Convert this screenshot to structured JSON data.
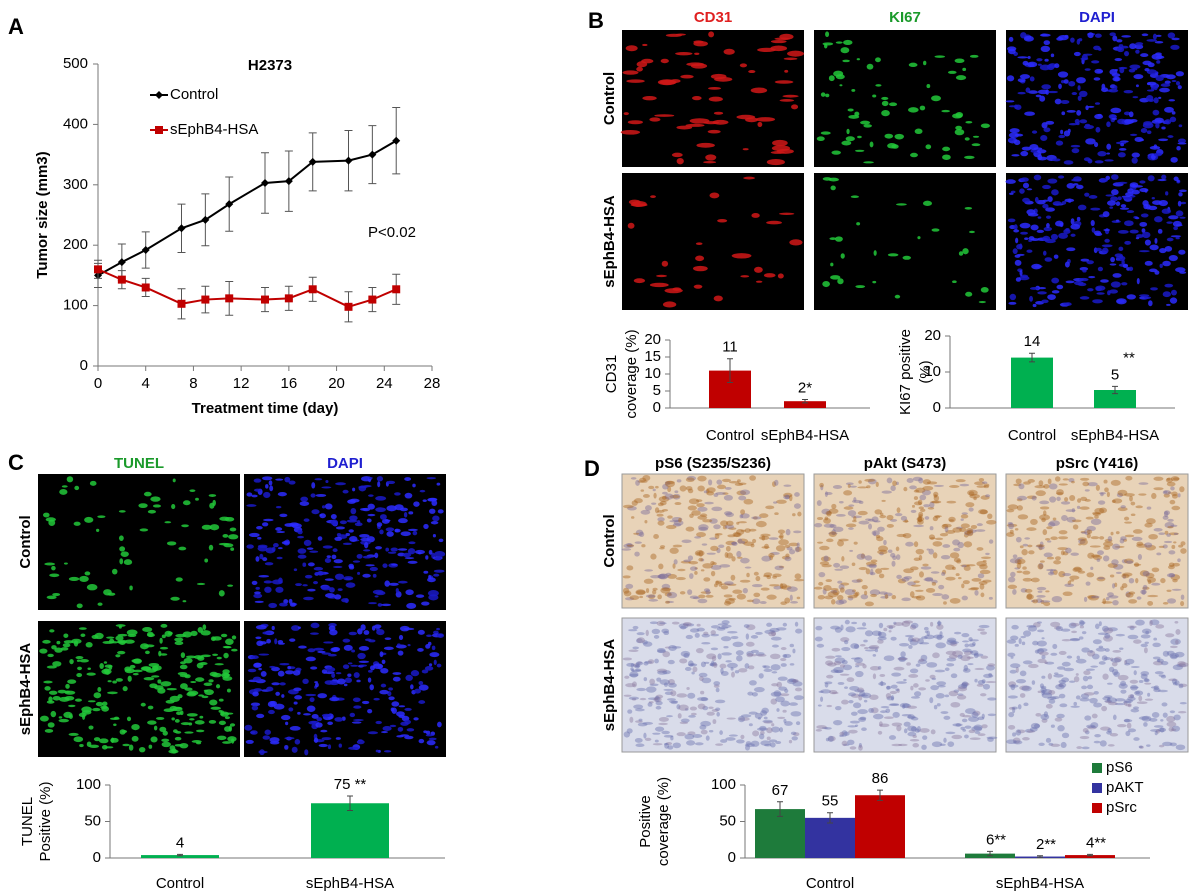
{
  "panel_letters": [
    "A",
    "B",
    "C",
    "D"
  ],
  "image_panels": [
    {
      "columns": [
        "CD31",
        "KI67",
        "DAPI"
      ],
      "rows": [
        "Control",
        "sEphB4-HSA"
      ]
    },
    {
      "columns": [
        "TUNEL",
        "DAPI"
      ],
      "rows": [
        "Control",
        "sEphB4-HSA"
      ]
    },
    {
      "columns": [
        "pS6 (S235/S236)",
        "pAkt (S473)",
        "pSrc (Y416)"
      ],
      "rows": [
        "Control",
        "sEphB4-HSA"
      ]
    }
  ],
  "chart_data": [
    {
      "type": "line",
      "title": "H2373",
      "xlabel": "Treatment time (day)",
      "ylabel": "Tumor size (mm3)",
      "x": [
        0,
        2,
        4,
        7,
        9,
        11,
        14,
        16,
        18,
        21,
        23,
        25
      ],
      "series": [
        {
          "name": "Control",
          "color": "#000000",
          "marker": "diamond",
          "values": [
            150,
            172,
            192,
            228,
            242,
            268,
            303,
            306,
            338,
            340,
            350,
            373
          ],
          "errors": [
            20,
            30,
            30,
            40,
            43,
            45,
            50,
            50,
            48,
            50,
            48,
            55
          ]
        },
        {
          "name": "sEphB4-HSA",
          "color": "#c00000",
          "marker": "square",
          "values": [
            160,
            143,
            130,
            103,
            110,
            112,
            110,
            112,
            127,
            98,
            110,
            127
          ],
          "errors": [
            15,
            15,
            15,
            25,
            22,
            28,
            20,
            20,
            20,
            25,
            20,
            25
          ]
        }
      ],
      "annotations": [
        "P<0.02"
      ],
      "xlim": [
        0,
        28
      ],
      "xticks": [
        0,
        4,
        8,
        12,
        16,
        20,
        24,
        28
      ],
      "ylim": [
        0,
        500
      ],
      "yticks": [
        0,
        100,
        200,
        300,
        400,
        500
      ]
    },
    {
      "type": "bar",
      "ylabel": [
        "CD31",
        "coverage  (%)"
      ],
      "categories": [
        "Control",
        "sEphB4-HSA"
      ],
      "values": [
        11,
        2
      ],
      "value_labels": [
        "11",
        "2*"
      ],
      "errors": [
        3.5,
        0.5
      ],
      "color": "#c00000",
      "ylim": [
        0,
        20
      ],
      "yticks": [
        0,
        5,
        10,
        15,
        20
      ]
    },
    {
      "type": "bar",
      "ylabel": [
        "KI67 positive",
        "(%)"
      ],
      "categories": [
        "Control",
        "sEphB4-HSA"
      ],
      "values": [
        14,
        5
      ],
      "value_labels": [
        "14",
        "5"
      ],
      "errors": [
        1.2,
        1
      ],
      "color": "#00b050",
      "annotations": [
        "**"
      ],
      "ylim": [
        0,
        20
      ],
      "yticks": [
        0,
        10,
        20
      ]
    },
    {
      "type": "bar",
      "ylabel": [
        "TUNEL",
        "Positive (%)"
      ],
      "categories": [
        "Control",
        "sEphB4-HSA"
      ],
      "values": [
        4,
        75
      ],
      "value_labels": [
        "4",
        "75 **"
      ],
      "errors": [
        1,
        10
      ],
      "color": "#00b050",
      "ylim": [
        0,
        100
      ],
      "yticks": [
        0,
        50,
        100
      ]
    },
    {
      "type": "bar",
      "ylabel": [
        "Positive",
        "coverage  (%)"
      ],
      "categories": [
        "Control",
        "sEphB4-HSA"
      ],
      "series": [
        {
          "name": "pS6",
          "color": "#1e7b3b",
          "values": [
            67,
            6
          ],
          "value_labels": [
            "67",
            "6**"
          ],
          "errors": [
            10,
            3
          ]
        },
        {
          "name": "pAKT",
          "color": "#3333a0",
          "values": [
            55,
            2
          ],
          "value_labels": [
            "55",
            "2**"
          ],
          "errors": [
            7,
            1
          ]
        },
        {
          "name": "pSrc",
          "color": "#c00000",
          "values": [
            86,
            4
          ],
          "value_labels": [
            "86",
            "4**"
          ],
          "errors": [
            7,
            1
          ]
        }
      ],
      "ylim": [
        0,
        100
      ],
      "yticks": [
        0,
        50,
        100
      ]
    }
  ]
}
